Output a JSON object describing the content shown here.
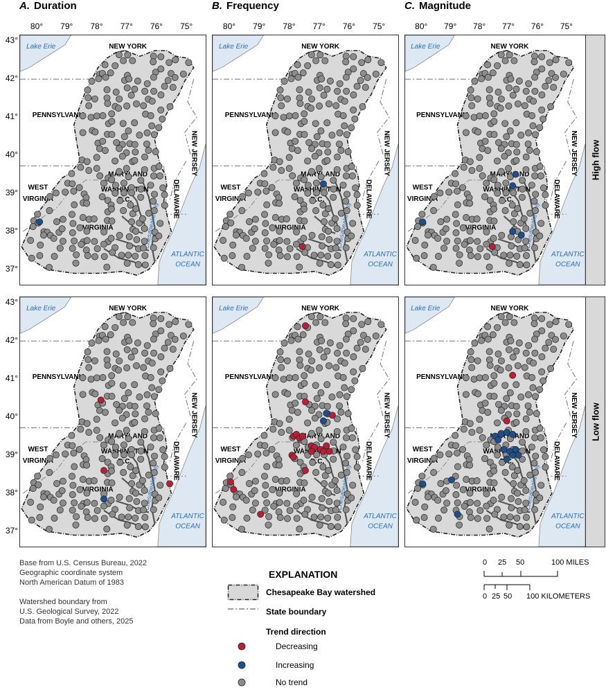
{
  "columns": [
    {
      "letter": "A.",
      "title": "Duration"
    },
    {
      "letter": "B.",
      "title": "Frequency"
    },
    {
      "letter": "C.",
      "title": "Magnitude"
    }
  ],
  "rows": [
    {
      "label": "High flow"
    },
    {
      "label": "Low flow"
    }
  ],
  "longitude_labels": [
    "80°",
    "79°",
    "78°",
    "77°",
    "76°",
    "75°"
  ],
  "latitude_labels": [
    "43°",
    "42°",
    "41°",
    "40°",
    "39°",
    "38°",
    "37°"
  ],
  "map_labels": {
    "lake_erie": "Lake Erie",
    "new_york": "NEW YORK",
    "pennsylvania": "PENNSYLVANIA",
    "new_jersey": "NEW JERSEY",
    "west": "WEST",
    "virginia_wv": "VIRGINIA",
    "maryland": "MARYLAND",
    "washington": "WASHINGTON",
    "dc": "D.C.",
    "virginia": "VIRGINIA",
    "delaware": "DELAWARE",
    "chesapeake_bay": "Chesapeake Bay",
    "atlantic": "ATLANTIC",
    "ocean": "OCEAN"
  },
  "source_notes": [
    "Base from U.S. Census Bureau, 2022",
    "Geographic coordinate system",
    "North American Datum of 1983",
    "",
    "Watershed boundary from",
    "U.S. Geological Survey, 2022",
    "Data from Boyle and others, 2025"
  ],
  "explanation": {
    "title": "EXPLANATION",
    "watershed": "Chesapeake Bay watershed",
    "state_boundary": "State boundary",
    "trend_direction": "Trend direction",
    "decreasing": "Decreasing",
    "increasing": "Increasing",
    "no_trend": "No trend"
  },
  "scale": {
    "miles_ticks": [
      "0",
      "25",
      "50",
      "100 MILES"
    ],
    "km_ticks": [
      "0",
      "25",
      "50",
      "100 KILOMETERS"
    ]
  },
  "colors": {
    "decreasing": "#b8203a",
    "increasing": "#1f4e8c",
    "no_trend": "#8c8c8c",
    "watershed_fill": "#d9d9d9",
    "water": "#dde8f3",
    "water_label": "#2a6fb5"
  },
  "trend_sites": [
    {
      "panel": "high-duration",
      "decreasing": [],
      "increasing": [
        [
          -79.95,
          38.25
        ]
      ]
    },
    {
      "panel": "high-frequency",
      "decreasing": [
        [
          -77.6,
          37.6
        ]
      ],
      "increasing": [
        [
          -76.9,
          39.25
        ]
      ]
    },
    {
      "panel": "high-magnitude",
      "decreasing": [
        [
          -77.6,
          37.6
        ]
      ],
      "increasing": [
        [
          -80.0,
          38.25
        ],
        [
          -76.8,
          39.5
        ],
        [
          -76.9,
          39.2
        ],
        [
          -76.9,
          38.0
        ],
        [
          -76.6,
          37.9
        ]
      ]
    },
    {
      "panel": "low-duration",
      "decreasing": [
        [
          -77.9,
          40.45
        ],
        [
          -77.8,
          38.6
        ],
        [
          -75.6,
          38.25
        ]
      ],
      "increasing": [
        [
          -77.8,
          37.85
        ]
      ]
    },
    {
      "panel": "low-frequency",
      "decreasing": [
        [
          -77.5,
          42.4
        ],
        [
          -77.5,
          40.4
        ],
        [
          -76.6,
          40.05
        ],
        [
          -77.9,
          39.5
        ],
        [
          -77.8,
          39.55
        ],
        [
          -77.7,
          39.45
        ],
        [
          -77.6,
          39.5
        ],
        [
          -77.3,
          39.25
        ],
        [
          -77.2,
          39.2
        ],
        [
          -77.0,
          39.15
        ],
        [
          -76.9,
          39.1
        ],
        [
          -77.3,
          39.1
        ],
        [
          -76.8,
          39.25
        ],
        [
          -77.95,
          39.0
        ],
        [
          -77.9,
          38.95
        ],
        [
          -77.5,
          38.6
        ],
        [
          -79.9,
          38.1
        ],
        [
          -80.0,
          38.3
        ],
        [
          -79.0,
          37.45
        ],
        [
          -76.7,
          39.1
        ]
      ],
      "increasing": [
        [
          -76.8,
          40.1
        ],
        [
          -76.9,
          39.9
        ]
      ]
    },
    {
      "panel": "low-magnitude",
      "decreasing": [
        [
          -76.9,
          41.1
        ],
        [
          -77.1,
          39.9
        ]
      ],
      "increasing": [
        [
          -77.5,
          39.5
        ],
        [
          -77.3,
          39.55
        ],
        [
          -77.1,
          39.6
        ],
        [
          -76.9,
          39.55
        ],
        [
          -77.4,
          39.4
        ],
        [
          -77.2,
          39.15
        ],
        [
          -77.0,
          39.1
        ],
        [
          -76.8,
          39.15
        ],
        [
          -77.1,
          38.9
        ],
        [
          -76.7,
          39.0
        ],
        [
          -76.9,
          39.0
        ],
        [
          -80.0,
          38.25
        ],
        [
          -79.0,
          38.35
        ],
        [
          -78.8,
          37.45
        ]
      ]
    }
  ]
}
